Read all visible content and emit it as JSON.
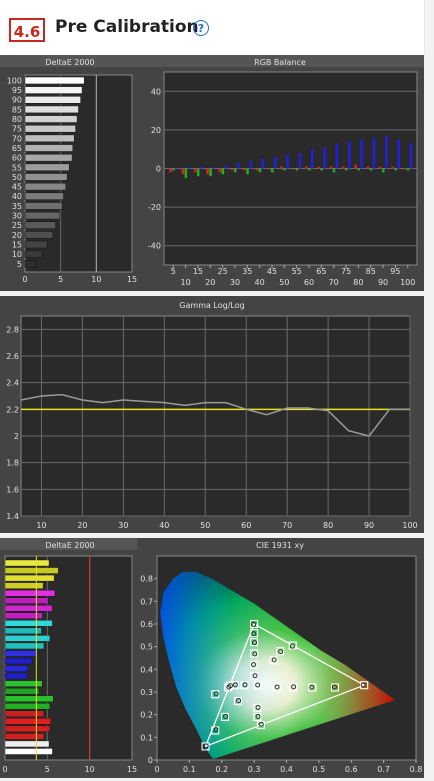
{
  "section": {
    "number": "4.6",
    "title": "Pre Calibration",
    "help_icon": "?"
  },
  "chart_data": [
    {
      "type": "bar",
      "title": "DeltaE 2000",
      "orientation": "horizontal",
      "categories": [
        "100",
        "95",
        "90",
        "85",
        "80",
        "75",
        "70",
        "65",
        "60",
        "55",
        "50",
        "45",
        "40",
        "35",
        "30",
        "25",
        "20",
        "15",
        "10",
        "5"
      ],
      "values": [
        8.3,
        8.0,
        7.8,
        7.5,
        7.3,
        7.1,
        6.9,
        6.7,
        6.6,
        6.2,
        5.9,
        5.7,
        5.4,
        5.2,
        4.9,
        4.3,
        3.9,
        3.1,
        2.4,
        1.6
      ],
      "xlim": [
        0,
        15
      ],
      "xticks": [
        0,
        5,
        10,
        15
      ],
      "threshold": 10
    },
    {
      "type": "bar",
      "title": "RGB Balance",
      "ylim": [
        -50,
        50
      ],
      "yticks": [
        40,
        20,
        0,
        -20,
        -40
      ],
      "categories": [
        5,
        10,
        15,
        20,
        25,
        30,
        35,
        40,
        45,
        50,
        55,
        60,
        65,
        70,
        75,
        80,
        85,
        90,
        95,
        100
      ],
      "tick_labels_top": [
        "5",
        "15",
        "25",
        "35",
        "45",
        "55",
        "65",
        "75",
        "85",
        "95"
      ],
      "tick_labels_bottom": [
        "10",
        "20",
        "30",
        "40",
        "50",
        "60",
        "70",
        "80",
        "90",
        "100"
      ],
      "series": [
        {
          "name": "Red",
          "color": "#e02020",
          "values": [
            -2,
            -3,
            -2,
            -3,
            -2,
            -1,
            -1,
            -1,
            0,
            1,
            0,
            1,
            1,
            1,
            1,
            2,
            1,
            1,
            1,
            0
          ]
        },
        {
          "name": "Green",
          "color": "#22b022",
          "values": [
            -1,
            -5,
            -4,
            -4,
            -3,
            -2,
            -3,
            -2,
            -2,
            -1,
            -1,
            -1,
            -1,
            -2,
            -1,
            -1,
            -1,
            -2,
            -1,
            -1
          ]
        },
        {
          "name": "Blue",
          "color": "#2020e0",
          "values": [
            0,
            1,
            1,
            1,
            2,
            3,
            4,
            5,
            6,
            7,
            8,
            10,
            11,
            13,
            14,
            15,
            16,
            17,
            15,
            13
          ]
        }
      ]
    },
    {
      "type": "line",
      "title": "Gamma Log/Log",
      "xlim": [
        5,
        100
      ],
      "ylim": [
        1.4,
        2.9
      ],
      "xticks": [
        10,
        20,
        30,
        40,
        50,
        60,
        70,
        80,
        90,
        100
      ],
      "yticks": [
        1.4,
        1.6,
        1.8,
        2,
        2.2,
        2.4,
        2.6,
        2.8
      ],
      "target": 2.2,
      "series": [
        {
          "x": [
            5,
            10,
            15,
            20,
            25,
            30,
            35,
            40,
            45,
            50,
            55,
            60,
            65,
            70,
            75,
            80,
            85,
            90,
            95,
            100
          ],
          "y": [
            2.27,
            2.3,
            2.31,
            2.27,
            2.25,
            2.27,
            2.26,
            2.25,
            2.23,
            2.25,
            2.25,
            2.2,
            2.16,
            2.21,
            2.21,
            2.19,
            2.04,
            2.0,
            2.2,
            2.2
          ]
        }
      ]
    },
    {
      "type": "bar",
      "title": "DeltaE 2000",
      "orientation": "horizontal",
      "xlim": [
        0,
        15
      ],
      "xticks": [
        0,
        5,
        10,
        15
      ],
      "threshold": 10,
      "rows": [
        {
          "color": "#ffffff",
          "value": 5.6
        },
        {
          "color": "#eeeeee",
          "value": 5.2
        },
        {
          "color": "#d02020",
          "value": 4.6
        },
        {
          "color": "#d02020",
          "value": 5.3
        },
        {
          "color": "#e02020",
          "value": 5.4
        },
        {
          "color": "#c82020",
          "value": 4.6
        },
        {
          "color": "#22b022",
          "value": 5.3
        },
        {
          "color": "#2ac02a",
          "value": 5.7
        },
        {
          "color": "#22a022",
          "value": 4.0
        },
        {
          "color": "#30c030",
          "value": 4.4
        },
        {
          "color": "#2020c8",
          "value": 2.6
        },
        {
          "color": "#2828d8",
          "value": 2.7
        },
        {
          "color": "#2020c0",
          "value": 3.2
        },
        {
          "color": "#3030e0",
          "value": 3.8
        },
        {
          "color": "#20c0c0",
          "value": 4.6
        },
        {
          "color": "#30d0d0",
          "value": 5.3
        },
        {
          "color": "#20b8b8",
          "value": 4.3
        },
        {
          "color": "#30d8d8",
          "value": 5.6
        },
        {
          "color": "#c020c0",
          "value": 4.4
        },
        {
          "color": "#d028d0",
          "value": 5.6
        },
        {
          "color": "#b820b8",
          "value": 5.1
        },
        {
          "color": "#e030e0",
          "value": 5.9
        },
        {
          "color": "#d0d020",
          "value": 4.5
        },
        {
          "color": "#e0e030",
          "value": 5.8
        },
        {
          "color": "#c8c820",
          "value": 6.3
        },
        {
          "color": "#e8e840",
          "value": 5.2
        }
      ]
    },
    {
      "type": "scatter",
      "title": "CIE 1931 xy",
      "xlim": [
        0,
        0.8
      ],
      "ylim": [
        0,
        0.9
      ],
      "xticks": [
        0,
        0.1,
        0.2,
        0.3,
        0.4,
        0.5,
        0.6,
        0.7,
        0.8
      ],
      "yticks": [
        0,
        0.1,
        0.2,
        0.3,
        0.4,
        0.5,
        0.6,
        0.7,
        0.8
      ],
      "gamut": [
        [
          0.64,
          0.33
        ],
        [
          0.3,
          0.6
        ],
        [
          0.15,
          0.06
        ]
      ],
      "targets": [
        [
          0.64,
          0.33
        ],
        [
          0.3,
          0.6
        ],
        [
          0.15,
          0.06
        ],
        [
          0.2247,
          0.3287
        ],
        [
          0.3209,
          0.1542
        ],
        [
          0.4193,
          0.5053
        ],
        [
          0.3127,
          0.329
        ],
        [
          0.55,
          0.32
        ],
        [
          0.48,
          0.32
        ],
        [
          0.42,
          0.32
        ],
        [
          0.37,
          0.32
        ],
        [
          0.3,
          0.56
        ],
        [
          0.3,
          0.52
        ],
        [
          0.3,
          0.47
        ],
        [
          0.3,
          0.42
        ],
        [
          0.3,
          0.37
        ],
        [
          0.25,
          0.26
        ],
        [
          0.21,
          0.19
        ],
        [
          0.18,
          0.13
        ],
        [
          0.18,
          0.29
        ],
        [
          0.22,
          0.32
        ],
        [
          0.31,
          0.19
        ],
        [
          0.31,
          0.23
        ],
        [
          0.36,
          0.44
        ],
        [
          0.38,
          0.48
        ],
        [
          0.27,
          0.33
        ],
        [
          0.24,
          0.33
        ]
      ],
      "measured": [
        [
          0.637,
          0.331
        ],
        [
          0.298,
          0.598
        ],
        [
          0.152,
          0.062
        ],
        [
          0.227,
          0.328
        ],
        [
          0.322,
          0.158
        ],
        [
          0.418,
          0.502
        ],
        [
          0.311,
          0.331
        ],
        [
          0.548,
          0.322
        ],
        [
          0.478,
          0.321
        ],
        [
          0.422,
          0.323
        ],
        [
          0.371,
          0.322
        ],
        [
          0.299,
          0.557
        ],
        [
          0.301,
          0.518
        ],
        [
          0.302,
          0.468
        ],
        [
          0.298,
          0.421
        ],
        [
          0.303,
          0.372
        ],
        [
          0.252,
          0.262
        ],
        [
          0.212,
          0.192
        ],
        [
          0.182,
          0.134
        ],
        [
          0.183,
          0.292
        ],
        [
          0.222,
          0.322
        ],
        [
          0.312,
          0.192
        ],
        [
          0.312,
          0.232
        ],
        [
          0.362,
          0.442
        ],
        [
          0.382,
          0.478
        ],
        [
          0.272,
          0.332
        ],
        [
          0.242,
          0.332
        ]
      ]
    }
  ]
}
